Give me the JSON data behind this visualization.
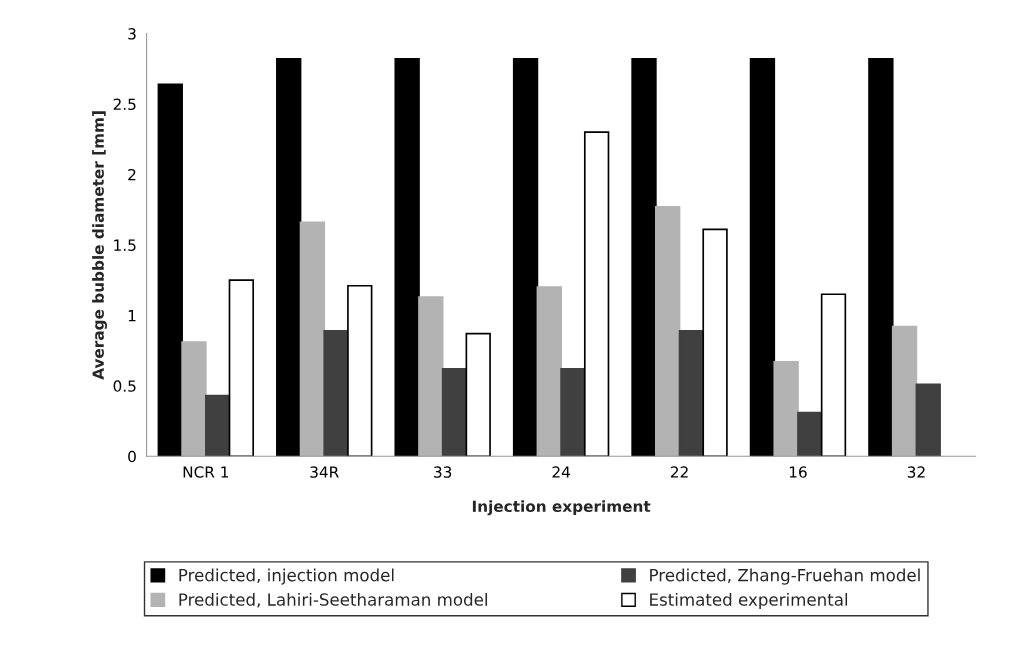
{
  "chart_data": {
    "type": "bar",
    "xlabel": "Injection experiment",
    "ylabel": "Average bubble diameter [mm]",
    "categories": [
      "NCR 1",
      "34R",
      "33",
      "24",
      "22",
      "16",
      "32"
    ],
    "series": [
      {
        "name": "Predicted, injection model",
        "color": "#000000",
        "values": [
          2.64,
          2.82,
          2.82,
          2.82,
          2.82,
          2.82,
          2.82
        ]
      },
      {
        "name": "Predicted, Lahiri-Seetharaman model",
        "color": "#b3b3b3",
        "values": [
          0.81,
          1.66,
          1.13,
          1.2,
          1.77,
          0.67,
          0.92
        ]
      },
      {
        "name": "Predicted, Zhang-Fruehan model",
        "color": "#404040",
        "values": [
          0.43,
          0.89,
          0.62,
          0.62,
          0.89,
          0.31,
          0.51
        ]
      },
      {
        "name": "Estimated experimental",
        "color": "#ffffff",
        "values": [
          1.25,
          1.21,
          0.87,
          2.3,
          1.61,
          1.15,
          null
        ]
      }
    ],
    "ylim": [
      0,
      3
    ],
    "yticks": [
      0,
      0.5,
      1,
      1.5,
      2,
      2.5,
      3
    ],
    "grid": false,
    "legend": "bottom"
  }
}
